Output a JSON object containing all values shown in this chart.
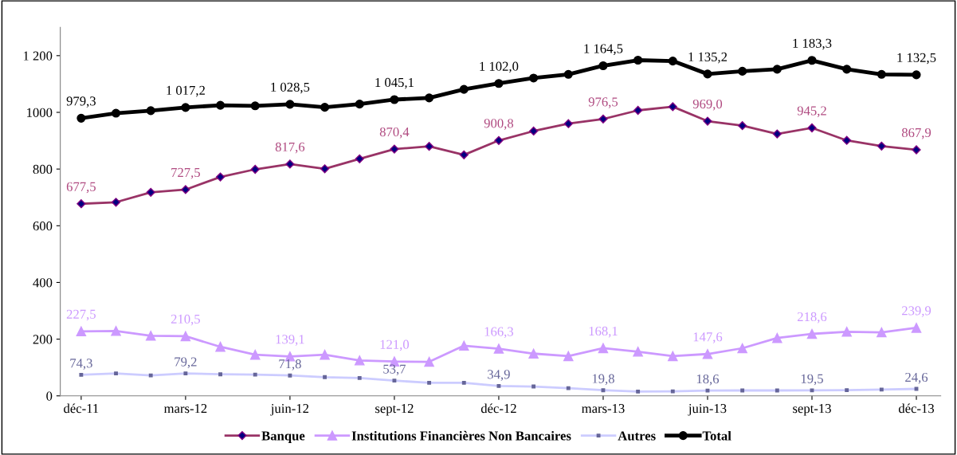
{
  "chart_data": {
    "type": "line",
    "categories": [
      "déc-11",
      null,
      null,
      "mars-12",
      null,
      null,
      "juin-12",
      null,
      null,
      "sept-12",
      null,
      null,
      "déc-12",
      null,
      null,
      "mars-13",
      null,
      null,
      "juin-13",
      null,
      null,
      "sept-13",
      null,
      null,
      "déc-13"
    ],
    "ylim": [
      0,
      1300
    ],
    "yticks": [
      0,
      200,
      400,
      600,
      800,
      1000,
      {
        "value": 1200,
        "label": "1 200"
      }
    ],
    "grid": false,
    "legend": "bottom",
    "series": [
      {
        "name": "Banque",
        "color": "#993366",
        "marker": "diamond",
        "values": [
          677.5,
          683,
          718,
          727.5,
          772,
          799,
          817.6,
          801,
          836,
          870.4,
          880,
          850,
          900.8,
          934,
          960,
          976.5,
          1007,
          1020,
          969.0,
          953,
          924,
          945.2,
          901,
          881,
          867.9
        ],
        "value_labels": [
          "677,5",
          null,
          null,
          "727,5",
          null,
          null,
          "817,6",
          null,
          null,
          "870,4",
          null,
          null,
          "900,8",
          null,
          null,
          "976,5",
          null,
          null,
          "969,0",
          null,
          null,
          "945,2",
          null,
          null,
          "867,9"
        ]
      },
      {
        "name": "Institutions Financières Non Bancaires",
        "color": "#cc99ff",
        "marker": "triangle",
        "values": [
          227.5,
          229,
          212,
          210.5,
          173,
          145,
          139.1,
          145,
          125,
          121.0,
          120,
          177,
          166.3,
          149,
          140,
          168.1,
          156,
          140,
          147.6,
          168,
          204,
          218.6,
          226,
          224,
          239.9
        ],
        "value_labels": [
          "227,5",
          null,
          null,
          "210,5",
          null,
          null,
          "139,1",
          null,
          null,
          "121,0",
          null,
          null,
          "166,3",
          null,
          null,
          "168,1",
          null,
          null,
          "147,6",
          null,
          null,
          "218,6",
          null,
          null,
          "239,9"
        ]
      },
      {
        "name": "Autres",
        "color": "#ccccff",
        "marker": "square",
        "values": [
          74.3,
          79,
          72,
          79.2,
          76,
          75,
          71.8,
          66,
          63,
          53.7,
          46,
          46,
          34.9,
          33,
          27,
          19.8,
          15,
          16,
          18.6,
          19,
          19,
          19.5,
          20,
          22,
          24.6
        ],
        "value_labels": [
          "74,3",
          null,
          null,
          "79,2",
          null,
          null,
          "71,8",
          null,
          null,
          "53,7",
          null,
          null,
          "34,9",
          null,
          null,
          "19,8",
          null,
          null,
          "18,6",
          null,
          null,
          "19,5",
          null,
          null,
          "24,6"
        ]
      },
      {
        "name": "Total",
        "color": "#000000",
        "marker": "circle",
        "values": [
          979.3,
          997,
          1006,
          1017.2,
          1025,
          1023,
          1028.5,
          1018,
          1029,
          1045.1,
          1051,
          1081,
          1102.0,
          1121,
          1134,
          1164.5,
          1184,
          1181,
          1135.2,
          1145,
          1152,
          1183.3,
          1152,
          1134,
          1132.5
        ],
        "value_labels": [
          "979,3",
          null,
          null,
          "1 017,2",
          null,
          null,
          "1 028,5",
          null,
          null,
          "1 045,1",
          null,
          null,
          "1 102,0",
          null,
          null,
          "1 164,5",
          null,
          null,
          "1 135,2",
          null,
          null,
          "1 183,3",
          null,
          null,
          "1 132,5"
        ]
      }
    ]
  }
}
